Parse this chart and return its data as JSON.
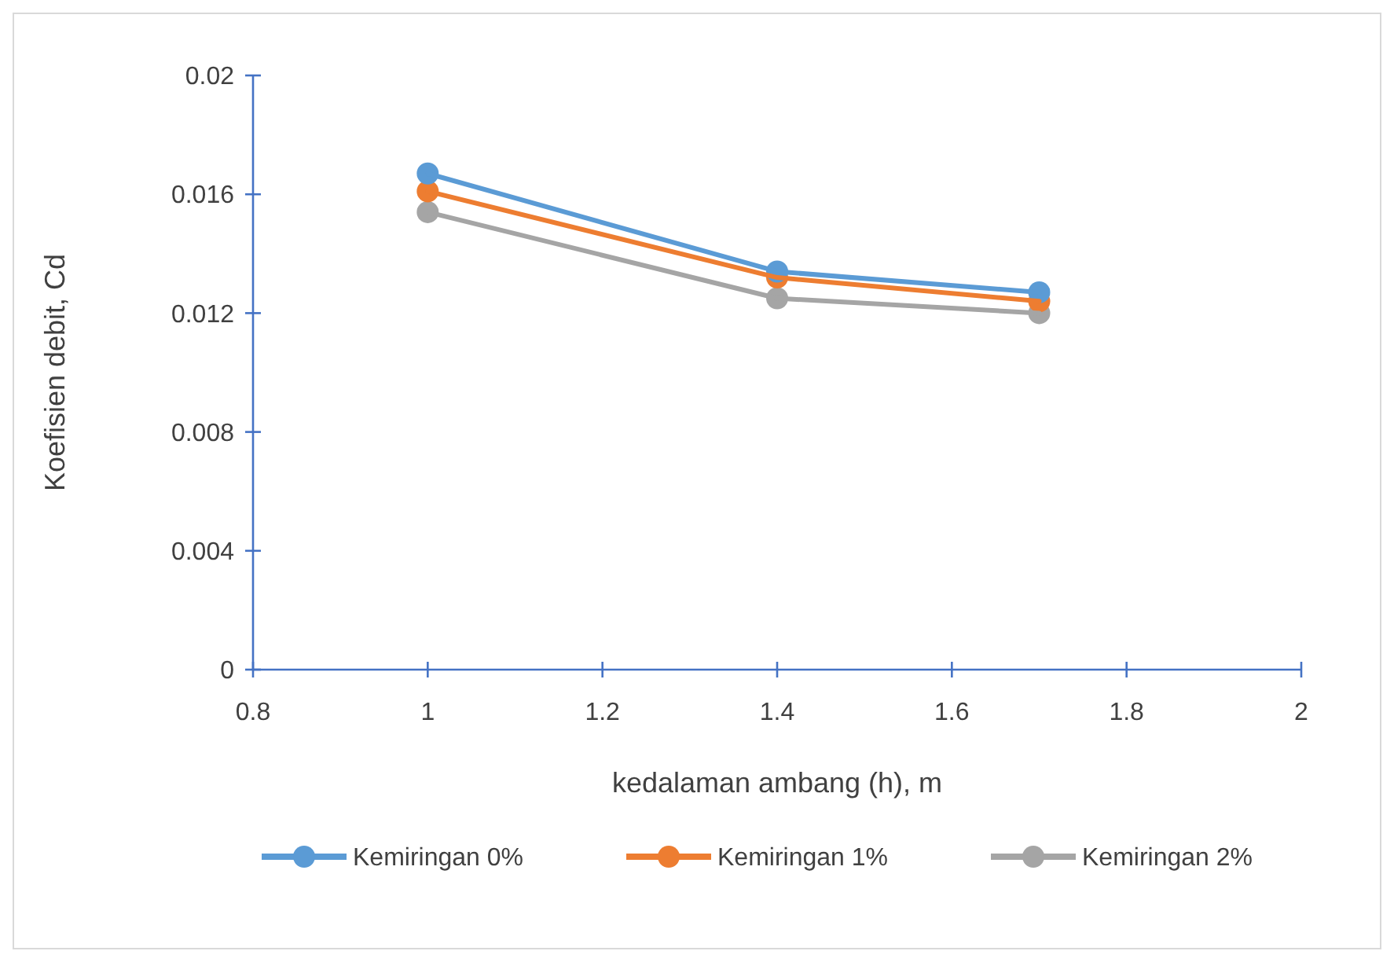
{
  "chart_data": {
    "type": "line",
    "xlabel": "kedalaman ambang (h), m",
    "ylabel": "Koefisien debit, Cd",
    "x": [
      1,
      1.4,
      1.7
    ],
    "series": [
      {
        "name": "Kemiringan 0%",
        "color": "#5b9bd5",
        "values": [
          0.0167,
          0.0134,
          0.0127
        ]
      },
      {
        "name": "Kemiringan 1%",
        "color": "#ed7d31",
        "values": [
          0.0161,
          0.0132,
          0.0124
        ]
      },
      {
        "name": "Kemiringan 2%",
        "color": "#a5a5a5",
        "values": [
          0.0154,
          0.0125,
          0.012
        ]
      }
    ],
    "xlim": [
      0.8,
      2
    ],
    "xticks": [
      0.8,
      1,
      1.2,
      1.4,
      1.6,
      1.8,
      2
    ],
    "ylim": [
      0,
      0.02
    ],
    "yticks": [
      0,
      0.004,
      0.008,
      0.012,
      0.016,
      0.02
    ],
    "grid": false,
    "legend": "bottom",
    "marker": "circle",
    "line_style": "solid"
  }
}
